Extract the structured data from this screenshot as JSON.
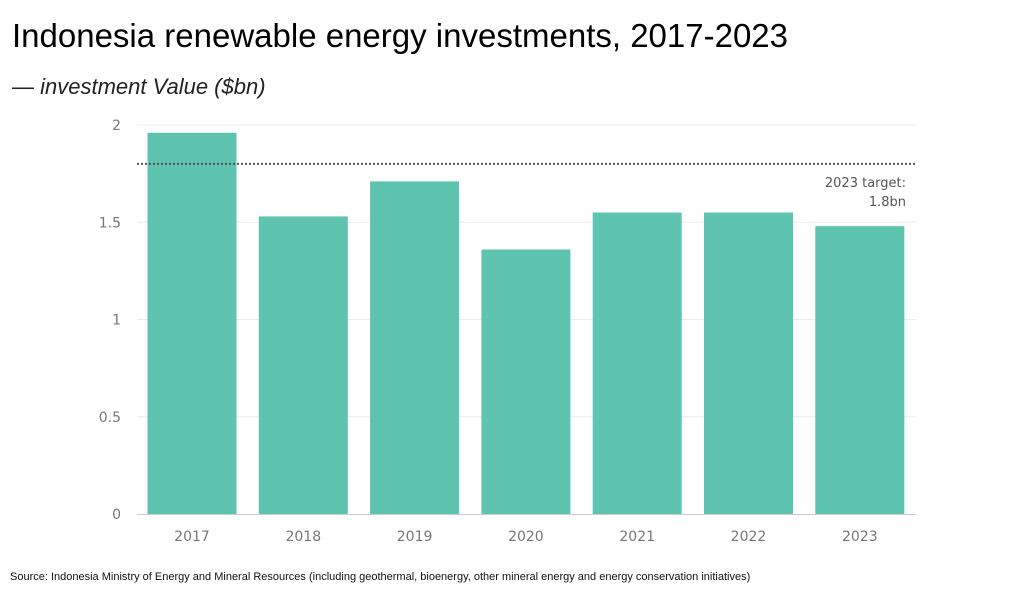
{
  "header": {
    "title": "Indonesia renewable energy investments, 2017-2023",
    "subtitle_dash": "—",
    "subtitle": "investment Value ($bn)"
  },
  "footer": {
    "source": "Source: Indonesia Ministry of Energy and Mineral Resources (including geothermal, bioenergy, other mineral energy and energy conservation initiatives)"
  },
  "colors": {
    "bar": "#5ec4b0",
    "gridline": "#ececec",
    "target_line": "#555555",
    "axis_line": "#cccccc"
  },
  "chart_data": {
    "type": "bar",
    "categories": [
      "2017",
      "2018",
      "2019",
      "2020",
      "2021",
      "2022",
      "2023"
    ],
    "values": [
      1.96,
      1.53,
      1.71,
      1.36,
      1.55,
      1.55,
      1.48
    ],
    "ylim": [
      0,
      2
    ],
    "yticks": [
      0,
      0.5,
      1,
      1.5,
      2
    ],
    "ytick_labels": [
      "0",
      "0.5",
      "1",
      "1.5",
      "2"
    ],
    "grid": true,
    "target": {
      "value": 1.8,
      "label_line1": "2023 target:",
      "label_line2": "1.8bn"
    }
  }
}
